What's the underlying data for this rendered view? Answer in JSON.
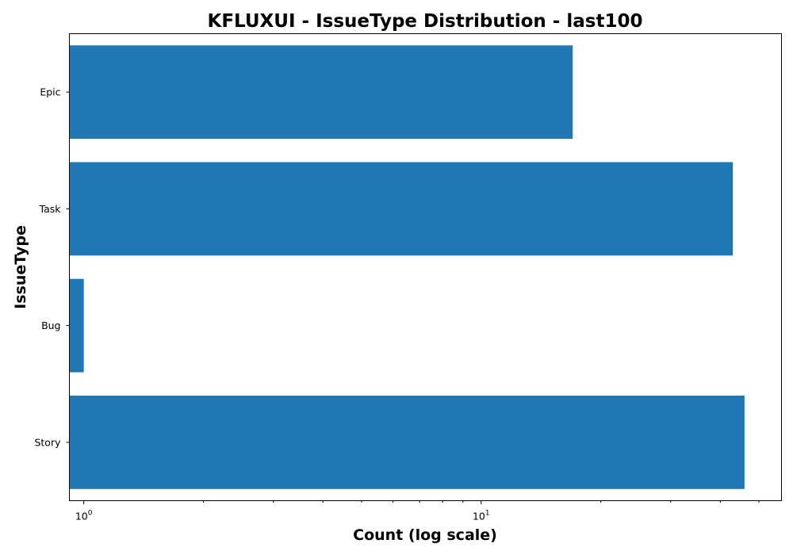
{
  "chart_data": {
    "type": "bar",
    "orientation": "horizontal",
    "title": "KFLUXUI - IssueType Distribution - last100",
    "xlabel": "Count (log scale)",
    "ylabel": "IssueType",
    "x_scale": "log",
    "xlim": [
      0.92,
      57
    ],
    "categories": [
      "Epic",
      "Task",
      "Bug",
      "Story"
    ],
    "values": [
      17,
      43,
      1,
      46
    ],
    "bar_color": "#1f77b4",
    "x_major_ticks": [
      {
        "value": 1,
        "base": "10",
        "exp": "0"
      },
      {
        "value": 10,
        "base": "10",
        "exp": "1"
      }
    ],
    "x_minor_ticks": [
      2,
      3,
      4,
      5,
      6,
      7,
      8,
      9,
      20,
      30,
      40,
      50
    ],
    "grid": false,
    "legend": "none"
  }
}
